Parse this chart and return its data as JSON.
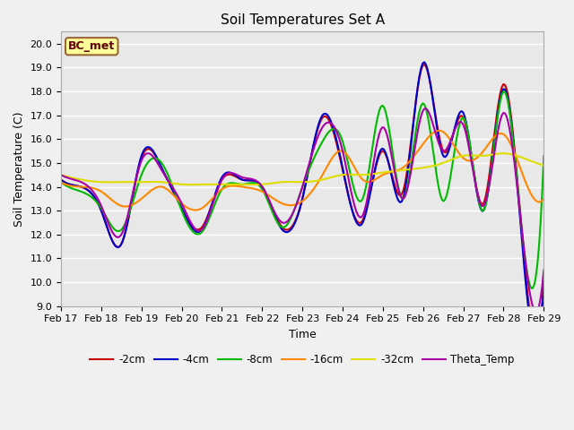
{
  "title": "Soil Temperatures Set A",
  "xlabel": "Time",
  "ylabel": "Soil Temperature (C)",
  "ylim": [
    9.0,
    20.5
  ],
  "yticks": [
    9.0,
    10.0,
    11.0,
    12.0,
    13.0,
    14.0,
    15.0,
    16.0,
    17.0,
    18.0,
    19.0,
    20.0
  ],
  "xtick_labels": [
    "Feb 17",
    "Feb 18",
    "Feb 19",
    "Feb 20",
    "Feb 21",
    "Feb 22",
    "Feb 23",
    "Feb 24",
    "Feb 25",
    "Feb 26",
    "Feb 27",
    "Feb 28",
    "Feb 29"
  ],
  "annotation_text": "BC_met",
  "annotation_bbox_facecolor": "#ffff99",
  "annotation_bbox_edgecolor": "#996633",
  "annotation_text_color": "#660000",
  "series_2cm_color": "#cc0000",
  "series_4cm_color": "#0000cc",
  "series_8cm_color": "#00bb00",
  "series_16cm_color": "#ff8800",
  "series_32cm_color": "#dddd00",
  "series_theta_color": "#aa00aa",
  "series_2cm_label": "-2cm",
  "series_4cm_label": "-4cm",
  "series_8cm_label": "-8cm",
  "series_16cm_label": "-16cm",
  "series_32cm_label": "-32cm",
  "series_theta_label": "Theta_Temp",
  "linewidth": 1.5,
  "background_color": "#e8e8e8",
  "fig_background_color": "#f0f0f0",
  "grid_color": "#ffffff",
  "grid_linewidth": 1.0
}
